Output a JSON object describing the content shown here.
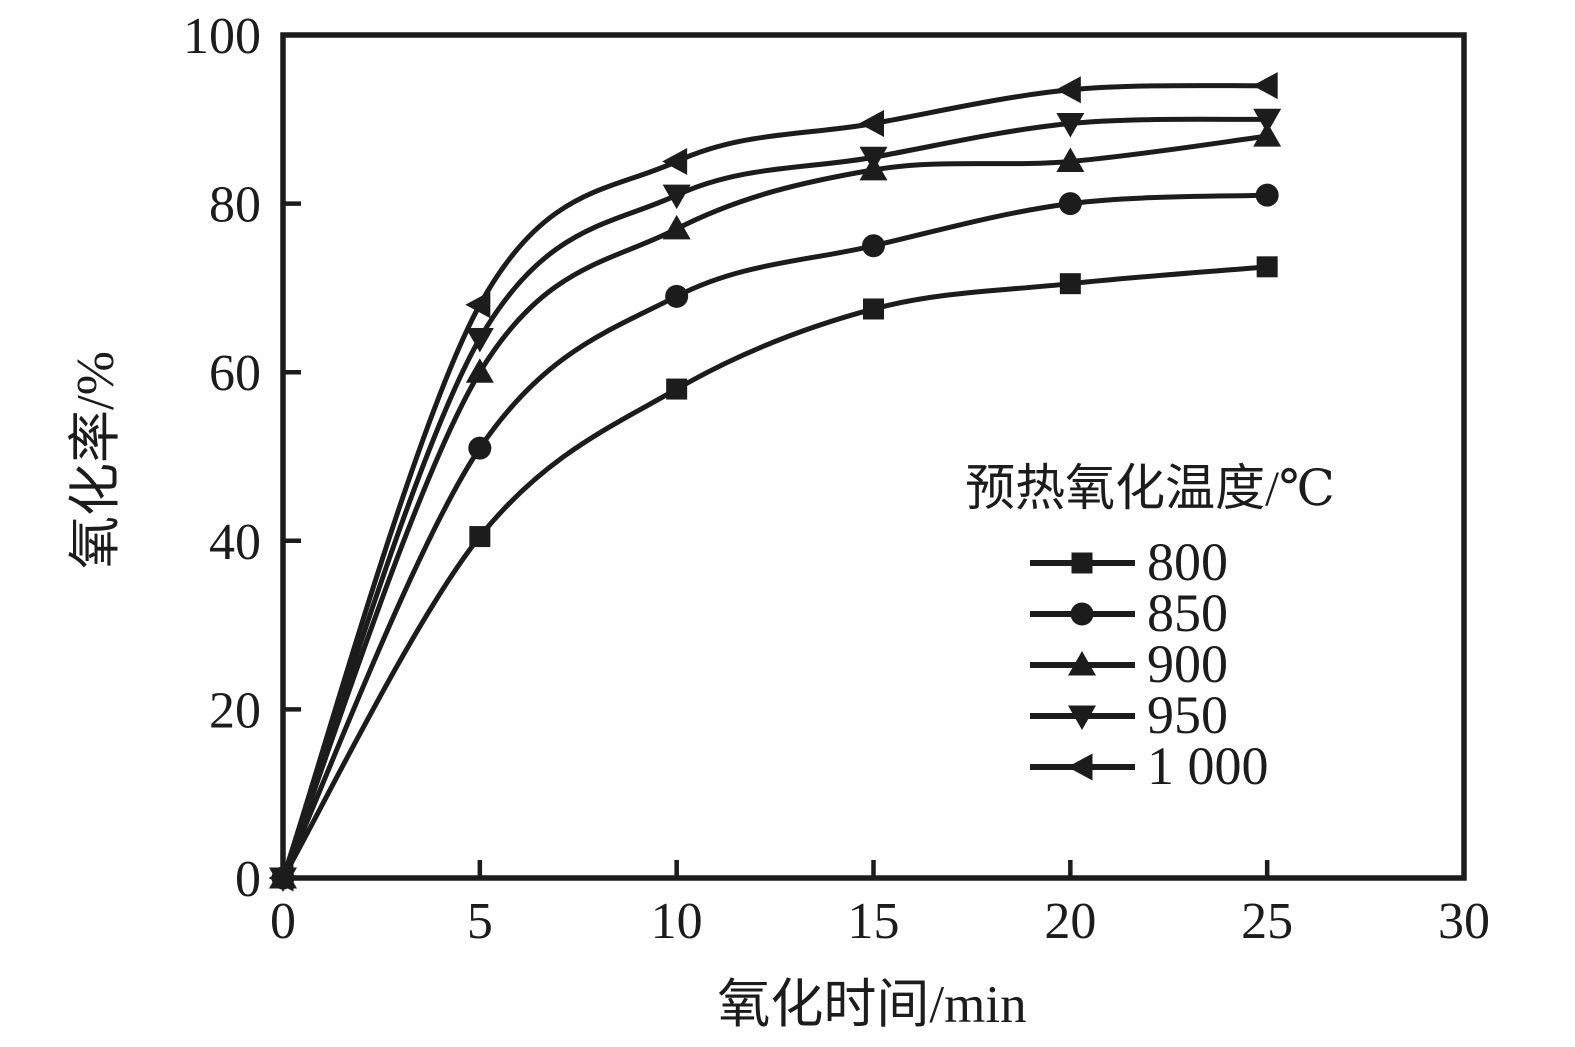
{
  "chart_data": {
    "type": "line",
    "title": "",
    "xlabel": "氧化时间/min",
    "ylabel": "氧化率/%",
    "xlim": [
      0,
      30
    ],
    "ylim": [
      0,
      100
    ],
    "xticks": [
      0,
      5,
      10,
      15,
      20,
      25,
      30
    ],
    "yticks": [
      0,
      20,
      40,
      60,
      80,
      100
    ],
    "grid": false,
    "line_color": "#1c1c1c",
    "legend": {
      "title": "预热氧化温度/℃",
      "position": "inside-right"
    },
    "x": [
      0,
      5,
      10,
      15,
      20,
      25
    ],
    "series": [
      {
        "name": "800",
        "marker": "square-icon",
        "values": [
          0,
          40.5,
          58,
          67.5,
          70.5,
          72.5
        ]
      },
      {
        "name": "850",
        "marker": "circle-icon",
        "values": [
          0,
          51,
          69,
          75,
          80,
          81
        ]
      },
      {
        "name": "900",
        "marker": "triangle-up-icon",
        "values": [
          0,
          60,
          77,
          84,
          85,
          88
        ]
      },
      {
        "name": "950",
        "marker": "triangle-down-icon",
        "values": [
          0,
          64,
          81,
          85.5,
          89.5,
          90
        ]
      },
      {
        "name": "1 000",
        "marker": "triangle-left-icon",
        "values": [
          0,
          68,
          85,
          89.5,
          93.5,
          94
        ]
      }
    ]
  }
}
